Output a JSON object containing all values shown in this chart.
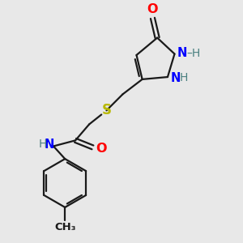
{
  "bg_color": "#e8e8e8",
  "bond_color": "#1a1a1a",
  "N_color": "#0000ff",
  "O_color": "#ff0000",
  "S_color": "#b8b800",
  "H_color": "#4a8080",
  "line_width": 1.6,
  "font_size": 10.5,
  "xlim": [
    0,
    10
  ],
  "ylim": [
    0,
    10
  ]
}
